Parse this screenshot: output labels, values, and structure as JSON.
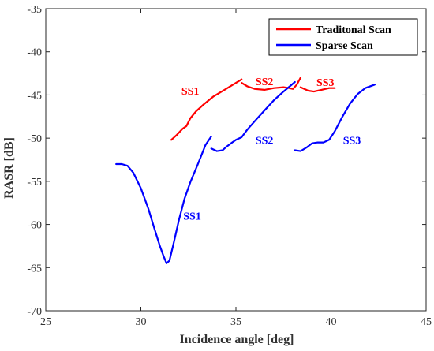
{
  "chart_data": {
    "type": "line",
    "title": "",
    "xlabel": "Incidence angle [deg]",
    "ylabel": "RASR [dB]",
    "xlim": [
      25,
      45
    ],
    "ylim": [
      -70,
      -35
    ],
    "xticks": [
      "25",
      "30",
      "35",
      "40",
      "45"
    ],
    "yticks": [
      "-70",
      "-65",
      "-60",
      "-55",
      "-50",
      "-45",
      "-40",
      "-35"
    ],
    "grid": false,
    "legend_position": "top-right",
    "series": [
      {
        "name": "Traditonal Scan",
        "color": "#ff0000",
        "segments": [
          [
            [
              31.6,
              -50.2
            ],
            [
              31.9,
              -49.6
            ],
            [
              32.2,
              -48.9
            ],
            [
              32.4,
              -48.6
            ],
            [
              32.6,
              -47.7
            ],
            [
              32.9,
              -46.9
            ],
            [
              33.3,
              -46.1
            ],
            [
              33.8,
              -45.2
            ],
            [
              34.4,
              -44.4
            ],
            [
              35.0,
              -43.6
            ],
            [
              35.3,
              -43.2
            ]
          ],
          [
            [
              35.3,
              -43.6
            ],
            [
              35.6,
              -44.0
            ],
            [
              36.0,
              -44.3
            ],
            [
              36.5,
              -44.4
            ],
            [
              37.0,
              -44.2
            ],
            [
              37.5,
              -44.1
            ],
            [
              37.8,
              -44.2
            ],
            [
              38.0,
              -44.3
            ],
            [
              38.2,
              -43.8
            ],
            [
              38.4,
              -43.0
            ]
          ],
          [
            [
              38.4,
              -44.1
            ],
            [
              38.8,
              -44.5
            ],
            [
              39.1,
              -44.6
            ],
            [
              39.5,
              -44.4
            ],
            [
              39.9,
              -44.2
            ],
            [
              40.2,
              -44.2
            ]
          ]
        ]
      },
      {
        "name": "Sparse Scan",
        "color": "#0000ff",
        "segments": [
          [
            [
              28.7,
              -53.0
            ],
            [
              29.0,
              -53.0
            ],
            [
              29.3,
              -53.2
            ],
            [
              29.6,
              -54.0
            ],
            [
              30.0,
              -55.8
            ],
            [
              30.4,
              -58.2
            ],
            [
              30.7,
              -60.4
            ],
            [
              31.0,
              -62.5
            ],
            [
              31.2,
              -63.7
            ],
            [
              31.35,
              -64.5
            ],
            [
              31.5,
              -64.2
            ],
            [
              31.7,
              -62.4
            ],
            [
              32.0,
              -59.5
            ],
            [
              32.3,
              -57.0
            ],
            [
              32.6,
              -55.1
            ],
            [
              33.0,
              -53.0
            ],
            [
              33.4,
              -50.8
            ],
            [
              33.7,
              -49.8
            ]
          ],
          [
            [
              33.7,
              -51.2
            ],
            [
              34.0,
              -51.5
            ],
            [
              34.3,
              -51.4
            ],
            [
              34.5,
              -51.0
            ],
            [
              34.8,
              -50.5
            ],
            [
              35.0,
              -50.2
            ],
            [
              35.3,
              -49.9
            ],
            [
              35.6,
              -49.0
            ],
            [
              36.0,
              -48.0
            ],
            [
              36.5,
              -46.8
            ],
            [
              37.0,
              -45.6
            ],
            [
              37.5,
              -44.6
            ],
            [
              38.1,
              -43.5
            ]
          ],
          [
            [
              38.1,
              -51.4
            ],
            [
              38.4,
              -51.5
            ],
            [
              38.7,
              -51.1
            ],
            [
              39.0,
              -50.6
            ],
            [
              39.3,
              -50.5
            ],
            [
              39.6,
              -50.5
            ],
            [
              39.9,
              -50.2
            ],
            [
              40.2,
              -49.2
            ],
            [
              40.6,
              -47.5
            ],
            [
              41.0,
              -46.0
            ],
            [
              41.4,
              -44.9
            ],
            [
              41.8,
              -44.2
            ],
            [
              42.3,
              -43.8
            ]
          ]
        ]
      }
    ],
    "annotations": [
      {
        "text": "SS1",
        "x": 32.6,
        "y": -44.5,
        "color": "#ff0000"
      },
      {
        "text": "SS2",
        "x": 36.5,
        "y": -43.4,
        "color": "#ff0000"
      },
      {
        "text": "SS3",
        "x": 39.7,
        "y": -43.5,
        "color": "#ff0000"
      },
      {
        "text": "SS1",
        "x": 32.7,
        "y": -59.0,
        "color": "#0000ff"
      },
      {
        "text": "SS2",
        "x": 36.5,
        "y": -50.2,
        "color": "#0000ff"
      },
      {
        "text": "SS3",
        "x": 41.1,
        "y": -50.2,
        "color": "#0000ff"
      }
    ]
  }
}
